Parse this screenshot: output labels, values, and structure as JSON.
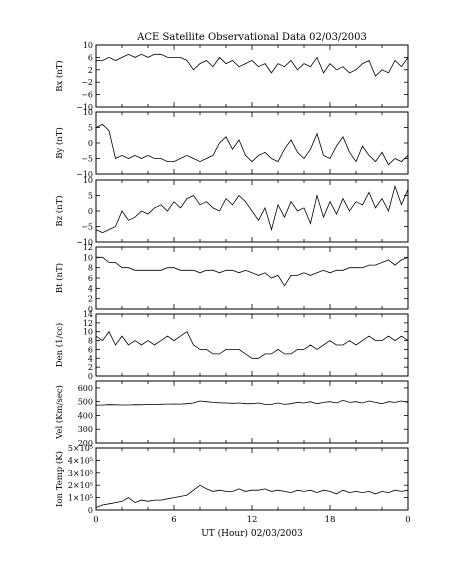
{
  "chart_data": {
    "type": "line",
    "title": "ACE Satellite Observational Data   02/03/2003",
    "xlabel": "UT (Hour)   02/03/2003",
    "x_ticks": [
      "0",
      "6",
      "12",
      "18",
      "0"
    ],
    "xlim": [
      0,
      24
    ],
    "panels": [
      {
        "ylabel": "Bx (nT)",
        "ylim": [
          -10,
          10
        ],
        "y_ticks": [
          -10,
          -6,
          -2,
          2,
          6,
          10
        ],
        "y_tick_labels": [
          "−10",
          "−6",
          "−2",
          "2",
          "6",
          "10"
        ],
        "x": [
          0,
          0.5,
          1,
          1.5,
          2,
          2.5,
          3,
          3.5,
          4,
          4.5,
          5,
          5.5,
          6,
          6.5,
          7,
          7.5,
          8,
          8.5,
          9,
          9.5,
          10,
          10.5,
          11,
          11.5,
          12,
          12.5,
          13,
          13.5,
          14,
          14.5,
          15,
          15.5,
          16,
          16.5,
          17,
          17.5,
          18,
          18.5,
          19,
          19.5,
          20,
          20.5,
          21,
          21.5,
          22,
          22.5,
          23,
          23.5,
          24
        ],
        "values": [
          5,
          5,
          6,
          5,
          6,
          7,
          6,
          7,
          6,
          7,
          7,
          6,
          6,
          6,
          5,
          2,
          4,
          5,
          3,
          6,
          4,
          5,
          3,
          4,
          5,
          3,
          4,
          1,
          4,
          3,
          5,
          2,
          4,
          3,
          6,
          1,
          4,
          2,
          3,
          1,
          2,
          4,
          5,
          0,
          2,
          1,
          5,
          3,
          6
        ]
      },
      {
        "ylabel": "By (nT)",
        "ylim": [
          -10,
          10
        ],
        "y_ticks": [
          -10,
          -5,
          0,
          5,
          10
        ],
        "y_tick_labels": [
          "−10",
          "−5",
          "0",
          "5",
          "10"
        ],
        "x": [
          0,
          0.5,
          1,
          1.5,
          2,
          2.5,
          3,
          3.5,
          4,
          4.5,
          5,
          5.5,
          6,
          6.5,
          7,
          7.5,
          8,
          8.5,
          9,
          9.5,
          10,
          10.5,
          11,
          11.5,
          12,
          12.5,
          13,
          13.5,
          14,
          14.5,
          15,
          15.5,
          16,
          16.5,
          17,
          17.5,
          18,
          18.5,
          19,
          19.5,
          20,
          20.5,
          21,
          21.5,
          22,
          22.5,
          23,
          23.5,
          24
        ],
        "values": [
          5,
          6,
          4,
          -5,
          -4,
          -5,
          -4,
          -5,
          -4,
          -5,
          -5,
          -6,
          -6,
          -5,
          -4,
          -5,
          -6,
          -5,
          -4,
          0,
          2,
          -2,
          1,
          -4,
          -6,
          -4,
          -3,
          -5,
          -6,
          -2,
          1,
          -3,
          -5,
          -2,
          3,
          -4,
          -5,
          -1,
          2,
          -3,
          -6,
          -1,
          -4,
          -6,
          -3,
          -7,
          -5,
          -6,
          -4
        ]
      },
      {
        "ylabel": "Bz (nT)",
        "ylim": [
          -10,
          10
        ],
        "y_ticks": [
          -10,
          -5,
          0,
          5,
          10
        ],
        "y_tick_labels": [
          "−10",
          "−5",
          "0",
          "5",
          "10"
        ],
        "x": [
          0,
          0.5,
          1,
          1.5,
          2,
          2.5,
          3,
          3.5,
          4,
          4.5,
          5,
          5.5,
          6,
          6.5,
          7,
          7.5,
          8,
          8.5,
          9,
          9.5,
          10,
          10.5,
          11,
          11.5,
          12,
          12.5,
          13,
          13.5,
          14,
          14.5,
          15,
          15.5,
          16,
          16.5,
          17,
          17.5,
          18,
          18.5,
          19,
          19.5,
          20,
          20.5,
          21,
          21.5,
          22,
          22.5,
          23,
          23.5,
          24
        ],
        "values": [
          -6,
          -7,
          -6,
          -5,
          0,
          -3,
          -2,
          0,
          -1,
          1,
          2,
          0,
          3,
          1,
          4,
          5,
          2,
          3,
          1,
          0,
          4,
          2,
          5,
          3,
          0,
          -3,
          1,
          -6,
          2,
          -2,
          3,
          0,
          1,
          -4,
          5,
          -2,
          3,
          -1,
          4,
          0,
          3,
          2,
          6,
          1,
          4,
          0,
          8,
          2,
          7
        ]
      },
      {
        "ylabel": "Bt (nT)",
        "ylim": [
          0,
          12
        ],
        "y_ticks": [
          0,
          2,
          4,
          6,
          8,
          10,
          12
        ],
        "y_tick_labels": [
          "0",
          "2",
          "4",
          "6",
          "8",
          "10",
          "12"
        ],
        "x": [
          0,
          0.5,
          1,
          1.5,
          2,
          2.5,
          3,
          3.5,
          4,
          4.5,
          5,
          5.5,
          6,
          6.5,
          7,
          7.5,
          8,
          8.5,
          9,
          9.5,
          10,
          10.5,
          11,
          11.5,
          12,
          12.5,
          13,
          13.5,
          14,
          14.5,
          15,
          15.5,
          16,
          16.5,
          17,
          17.5,
          18,
          18.5,
          19,
          19.5,
          20,
          20.5,
          21,
          21.5,
          22,
          22.5,
          23,
          23.5,
          24
        ],
        "values": [
          10,
          10,
          9,
          9,
          8,
          8,
          7.5,
          7.5,
          7.5,
          7.5,
          7.5,
          8,
          8,
          7.5,
          7.5,
          7.5,
          7,
          7.5,
          7.5,
          7,
          7.5,
          7.5,
          7,
          7.5,
          7,
          6.5,
          7,
          6,
          6.5,
          4.5,
          6.5,
          6.5,
          7,
          6.5,
          7,
          7.5,
          7,
          7.5,
          7.5,
          8,
          8,
          8,
          8.5,
          8.5,
          9,
          9.5,
          8.5,
          9.5,
          10
        ]
      },
      {
        "ylabel": "Den (1/cc)",
        "ylim": [
          0,
          14
        ],
        "y_ticks": [
          0,
          2,
          4,
          6,
          8,
          10,
          12,
          14
        ],
        "y_tick_labels": [
          "0",
          "2",
          "4",
          "6",
          "8",
          "10",
          "12",
          "14"
        ],
        "x": [
          0,
          0.5,
          1,
          1.5,
          2,
          2.5,
          3,
          3.5,
          4,
          4.5,
          5,
          5.5,
          6,
          6.5,
          7,
          7.5,
          8,
          8.5,
          9,
          9.5,
          10,
          10.5,
          11,
          11.5,
          12,
          12.5,
          13,
          13.5,
          14,
          14.5,
          15,
          15.5,
          16,
          16.5,
          17,
          17.5,
          18,
          18.5,
          19,
          19.5,
          20,
          20.5,
          21,
          21.5,
          22,
          22.5,
          23,
          23.5,
          24
        ],
        "values": [
          9,
          8,
          10,
          7,
          9,
          7,
          8,
          7,
          8,
          7,
          8,
          9,
          8,
          9,
          10,
          7,
          6,
          6,
          5,
          5,
          6,
          6,
          6,
          5,
          4,
          4,
          5,
          5,
          6,
          5,
          5,
          6,
          6,
          7,
          6,
          7,
          8,
          7,
          7,
          8,
          7,
          8,
          9,
          8,
          8,
          9,
          8,
          9,
          8
        ]
      },
      {
        "ylabel": "Vel (Km/sec)",
        "ylim": [
          200,
          650
        ],
        "y_ticks": [
          200,
          300,
          400,
          500,
          600
        ],
        "y_tick_labels": [
          "200",
          "300",
          "400",
          "500",
          "600"
        ],
        "x": [
          0,
          0.5,
          1,
          1.5,
          2,
          2.5,
          3,
          3.5,
          4,
          4.5,
          5,
          5.5,
          6,
          6.5,
          7,
          7.5,
          8,
          8.5,
          9,
          9.5,
          10,
          10.5,
          11,
          11.5,
          12,
          12.5,
          13,
          13.5,
          14,
          14.5,
          15,
          15.5,
          16,
          16.5,
          17,
          17.5,
          18,
          18.5,
          19,
          19.5,
          20,
          20.5,
          21,
          21.5,
          22,
          22.5,
          23,
          23.5,
          24
        ],
        "values": [
          475,
          475,
          478,
          477,
          476,
          476,
          478,
          477,
          480,
          479,
          481,
          482,
          483,
          482,
          485,
          490,
          505,
          500,
          495,
          492,
          490,
          488,
          490,
          485,
          485,
          490,
          480,
          480,
          490,
          480,
          485,
          495,
          490,
          500,
          485,
          495,
          500,
          490,
          510,
          495,
          500,
          490,
          505,
          495,
          485,
          500,
          495,
          505,
          495
        ]
      },
      {
        "ylabel": "Ion Temp (K)",
        "ylim": [
          0,
          500000
        ],
        "y_ticks": [
          0,
          100000,
          200000,
          300000,
          400000,
          500000
        ],
        "y_tick_labels": [
          "0",
          "1×10⁵",
          "2×10⁵",
          "3×10⁵",
          "4×10⁵",
          "5×10⁵"
        ],
        "x": [
          0,
          0.5,
          1,
          1.5,
          2,
          2.5,
          3,
          3.5,
          4,
          4.5,
          5,
          5.5,
          6,
          6.5,
          7,
          7.5,
          8,
          8.5,
          9,
          9.5,
          10,
          10.5,
          11,
          11.5,
          12,
          12.5,
          13,
          13.5,
          14,
          14.5,
          15,
          15.5,
          16,
          16.5,
          17,
          17.5,
          18,
          18.5,
          19,
          19.5,
          20,
          20.5,
          21,
          21.5,
          22,
          22.5,
          23,
          23.5,
          24
        ],
        "values": [
          20000,
          40000,
          50000,
          60000,
          70000,
          100000,
          60000,
          80000,
          70000,
          80000,
          80000,
          90000,
          100000,
          110000,
          120000,
          160000,
          200000,
          170000,
          150000,
          160000,
          150000,
          150000,
          170000,
          150000,
          160000,
          160000,
          170000,
          150000,
          160000,
          150000,
          140000,
          160000,
          150000,
          160000,
          140000,
          160000,
          150000,
          130000,
          160000,
          140000,
          150000,
          140000,
          150000,
          130000,
          150000,
          140000,
          160000,
          150000,
          160000
        ]
      }
    ]
  }
}
